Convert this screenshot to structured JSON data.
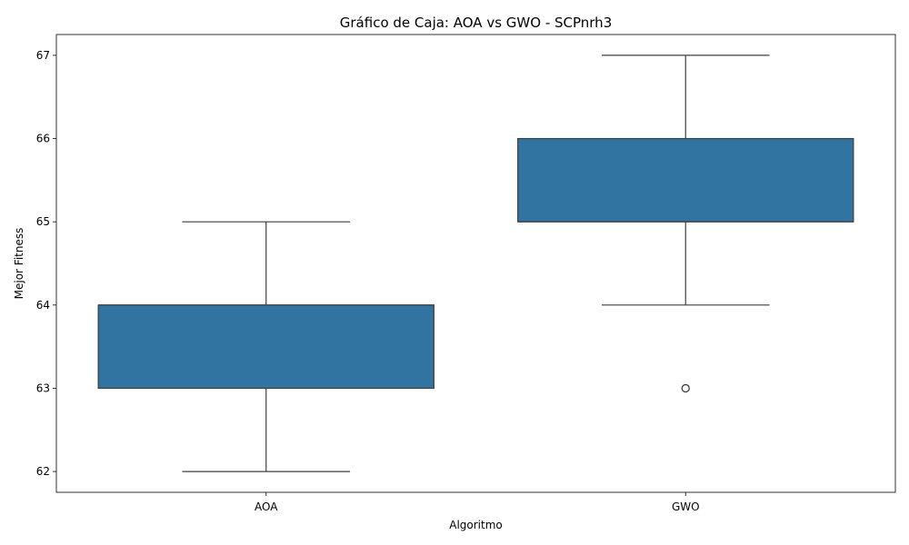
{
  "chart_data": {
    "type": "box",
    "title": "Gráfico de Caja: AOA vs GWO - SCPnrh3",
    "xlabel": "Algoritmo",
    "ylabel": "Mejor Fitness",
    "ylim": [
      61.75,
      67.25
    ],
    "yticks": [
      62,
      63,
      64,
      65,
      66,
      67
    ],
    "grid": false,
    "box_color": "#3274a1",
    "line_color": "#3f3f3f",
    "categories": [
      "AOA",
      "GWO"
    ],
    "boxes": [
      {
        "category": "AOA",
        "whisker_low": 62,
        "q1": 63,
        "median": 64,
        "q3": 64,
        "whisker_high": 65,
        "outliers": []
      },
      {
        "category": "GWO",
        "whisker_low": 64,
        "q1": 65,
        "median": 65,
        "q3": 66,
        "whisker_high": 67,
        "outliers": [
          63
        ]
      }
    ]
  }
}
